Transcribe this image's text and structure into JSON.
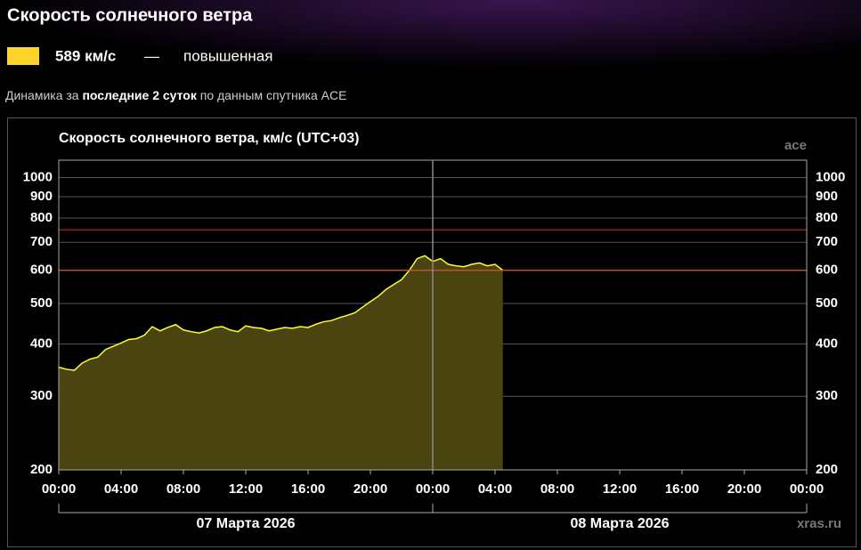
{
  "header": {
    "title": "Скорость солнечного ветра",
    "current": "589 км/с",
    "dash": "—",
    "status": "повышенная",
    "subtitle_start": "Динамика за",
    "subtitle_bold": "последние 2 суток",
    "subtitle_end": "по данным спутника ACE"
  },
  "chart_data": {
    "type": "area",
    "title": "Скорость солнечного ветра, км/с (UTC+03)",
    "source": "ace",
    "credit": "xras.ru",
    "dates": [
      "07 Марта 2026",
      "08 Марта 2026"
    ],
    "log_scale": true,
    "grid": true,
    "thresholds": [
      {
        "value": 600,
        "color": "#d9552b"
      },
      {
        "value": 750,
        "color": "#cc2222"
      }
    ],
    "x": [
      0,
      0.5,
      1,
      1.5,
      2,
      2.5,
      3,
      3.5,
      4,
      4.5,
      5,
      5.5,
      6,
      6.5,
      7,
      7.5,
      8,
      8.5,
      9,
      9.5,
      10,
      10.5,
      11,
      11.5,
      12,
      12.5,
      13,
      13.5,
      14,
      14.5,
      15,
      15.5,
      16,
      16.5,
      17,
      17.5,
      18,
      18.5,
      19,
      19.5,
      20,
      20.5,
      21,
      21.5,
      22,
      22.5,
      23,
      23.5,
      24,
      24.5,
      25,
      25.5,
      26,
      26.5,
      27,
      27.5,
      28,
      28.5
    ],
    "series": [
      {
        "name": "Скорость солнечного ветра",
        "color": "#ffff33",
        "fill": "#4a4410",
        "values": [
          352,
          348,
          346,
          360,
          368,
          372,
          388,
          395,
          402,
          410,
          412,
          420,
          440,
          430,
          438,
          445,
          432,
          428,
          425,
          430,
          438,
          440,
          432,
          428,
          442,
          438,
          436,
          430,
          434,
          438,
          436,
          440,
          438,
          446,
          452,
          455,
          462,
          468,
          475,
          490,
          505,
          520,
          540,
          555,
          570,
          600,
          640,
          650,
          630,
          640,
          620,
          615,
          612,
          620,
          625,
          615,
          620,
          600
        ]
      }
    ],
    "xlim": [
      0,
      48
    ],
    "xticks": [
      {
        "value": 0,
        "label": "00:00"
      },
      {
        "value": 4,
        "label": "04:00"
      },
      {
        "value": 8,
        "label": "08:00"
      },
      {
        "value": 12,
        "label": "12:00"
      },
      {
        "value": 16,
        "label": "16:00"
      },
      {
        "value": 20,
        "label": "20:00"
      },
      {
        "value": 24,
        "label": "00:00"
      },
      {
        "value": 28,
        "label": "04:00"
      },
      {
        "value": 32,
        "label": "08:00"
      },
      {
        "value": 36,
        "label": "12:00"
      },
      {
        "value": 40,
        "label": "16:00"
      },
      {
        "value": 44,
        "label": "20:00"
      },
      {
        "value": 48,
        "label": "00:00"
      }
    ],
    "ylim": [
      200,
      1100
    ],
    "yticks": [
      200,
      300,
      400,
      500,
      600,
      700,
      800,
      900,
      1000
    ]
  }
}
